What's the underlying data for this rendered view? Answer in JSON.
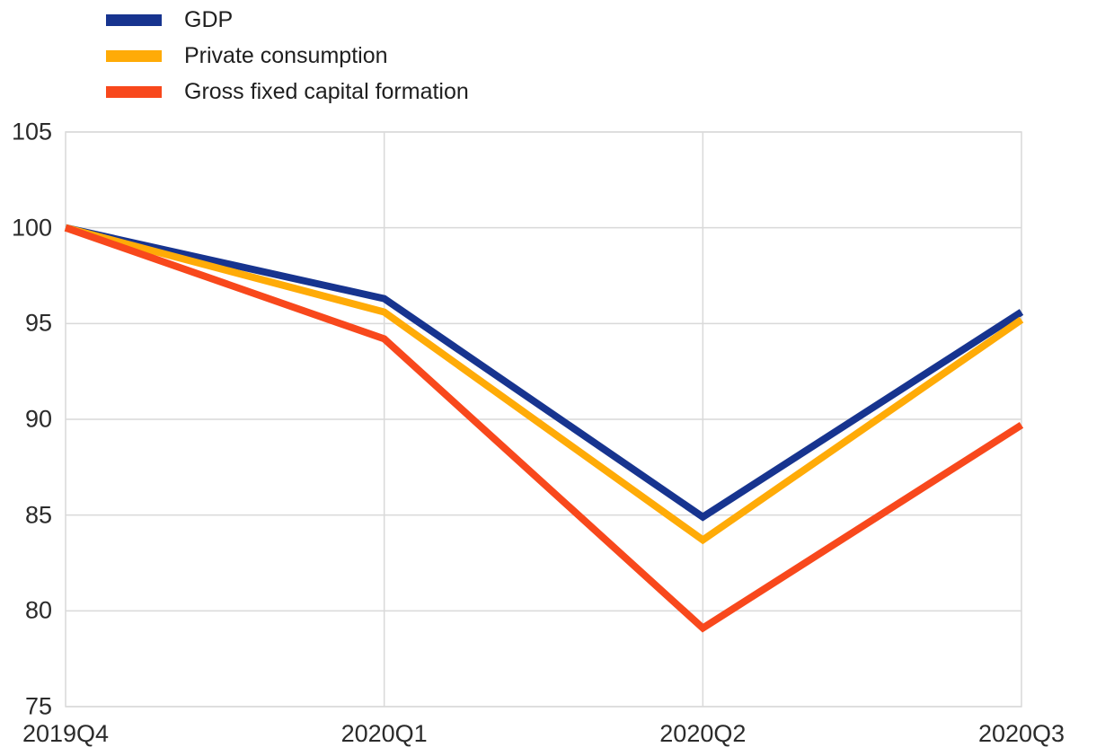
{
  "chart_data": {
    "type": "line",
    "title": "",
    "xlabel": "",
    "ylabel": "",
    "categories": [
      "2019Q4",
      "2020Q1",
      "2020Q2",
      "2020Q3"
    ],
    "series": [
      {
        "name": "GDP",
        "color": "#17348F",
        "values": [
          100,
          96.3,
          84.9,
          95.6
        ]
      },
      {
        "name": "Private consumption",
        "color": "#FFAB07",
        "values": [
          100,
          95.6,
          83.7,
          95.2
        ]
      },
      {
        "name": "Gross fixed capital formation",
        "color": "#F8481C",
        "values": [
          100,
          94.2,
          79.1,
          89.7
        ]
      }
    ],
    "ylim": [
      75,
      105
    ],
    "yticks": [
      75,
      80,
      85,
      90,
      95,
      100,
      105
    ],
    "grid": true,
    "grid_color": "#D9D9D9",
    "legend_position": "top-left",
    "line_width": 8
  }
}
